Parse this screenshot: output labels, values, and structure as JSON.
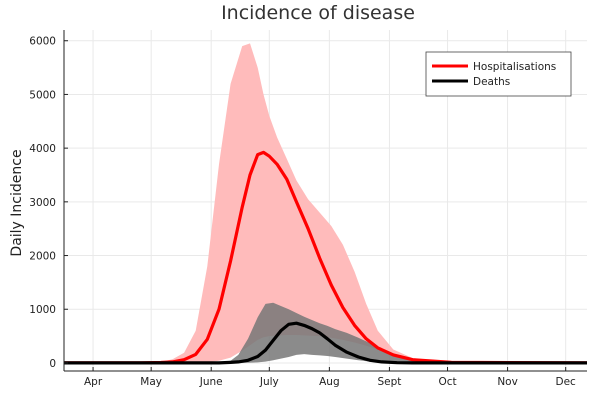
{
  "chart_data": {
    "type": "line",
    "title": "Incidence of disease",
    "xlabel": "",
    "ylabel": "Daily Incidence",
    "grid": true,
    "legend_position": "top-right",
    "xlim": [
      0,
      270
    ],
    "ylim": [
      -150,
      6200
    ],
    "x_unit": "day",
    "x_ticks": [
      {
        "label": "Apr",
        "value": 15
      },
      {
        "label": "May",
        "value": 45
      },
      {
        "label": "June",
        "value": 76
      },
      {
        "label": "July",
        "value": 106
      },
      {
        "label": "Aug",
        "value": 137
      },
      {
        "label": "Sept",
        "value": 168
      },
      {
        "label": "Oct",
        "value": 198
      },
      {
        "label": "Nov",
        "value": 229
      },
      {
        "label": "Dec",
        "value": 259
      }
    ],
    "y_ticks": [
      0,
      1000,
      2000,
      3000,
      4000,
      5000,
      6000
    ],
    "series": [
      {
        "name": "Hospitalisations",
        "color": "#ff0000",
        "x": [
          0,
          40,
          50,
          56,
          62,
          68,
          74,
          80,
          86,
          92,
          96,
          100,
          103,
          106,
          110,
          115,
          120,
          126,
          132,
          138,
          144,
          150,
          156,
          162,
          170,
          180,
          200,
          270
        ],
        "values": [
          0,
          0,
          8,
          20,
          60,
          160,
          440,
          1000,
          1900,
          2900,
          3500,
          3880,
          3920,
          3850,
          3700,
          3420,
          3000,
          2500,
          1950,
          1450,
          1030,
          700,
          450,
          280,
          150,
          60,
          10,
          0
        ],
        "band": {
          "color": "#ffbbbb",
          "lower": [
            0,
            0,
            0,
            0,
            2,
            5,
            15,
            40,
            100,
            230,
            330,
            430,
            480,
            500,
            510,
            520,
            520,
            510,
            500,
            470,
            430,
            380,
            320,
            250,
            170,
            80,
            10,
            0
          ],
          "upper": [
            0,
            0,
            20,
            70,
            190,
            600,
            1800,
            3700,
            5200,
            5900,
            5950,
            5500,
            5000,
            4600,
            4200,
            3800,
            3400,
            3050,
            2800,
            2550,
            2200,
            1700,
            1100,
            600,
            250,
            90,
            15,
            0
          ]
        }
      },
      {
        "name": "Deaths",
        "color": "#000000",
        "x": [
          0,
          80,
          86,
          90,
          95,
          100,
          104,
          108,
          112,
          116,
          120,
          124,
          128,
          132,
          136,
          140,
          146,
          152,
          158,
          164,
          172,
          180,
          195,
          270
        ],
        "values": [
          0,
          0,
          10,
          20,
          50,
          120,
          240,
          420,
          600,
          720,
          740,
          700,
          640,
          560,
          450,
          330,
          200,
          110,
          50,
          20,
          5,
          0,
          0,
          0
        ],
        "band": {
          "color": "#777777",
          "lower": [
            0,
            0,
            0,
            0,
            2,
            10,
            25,
            50,
            80,
            110,
            150,
            165,
            150,
            140,
            130,
            110,
            80,
            50,
            25,
            10,
            2,
            0,
            0,
            0
          ],
          "upper": [
            0,
            0,
            40,
            150,
            450,
            850,
            1100,
            1120,
            1060,
            1000,
            930,
            860,
            800,
            740,
            690,
            630,
            560,
            470,
            370,
            260,
            130,
            50,
            0,
            0
          ]
        }
      }
    ]
  }
}
